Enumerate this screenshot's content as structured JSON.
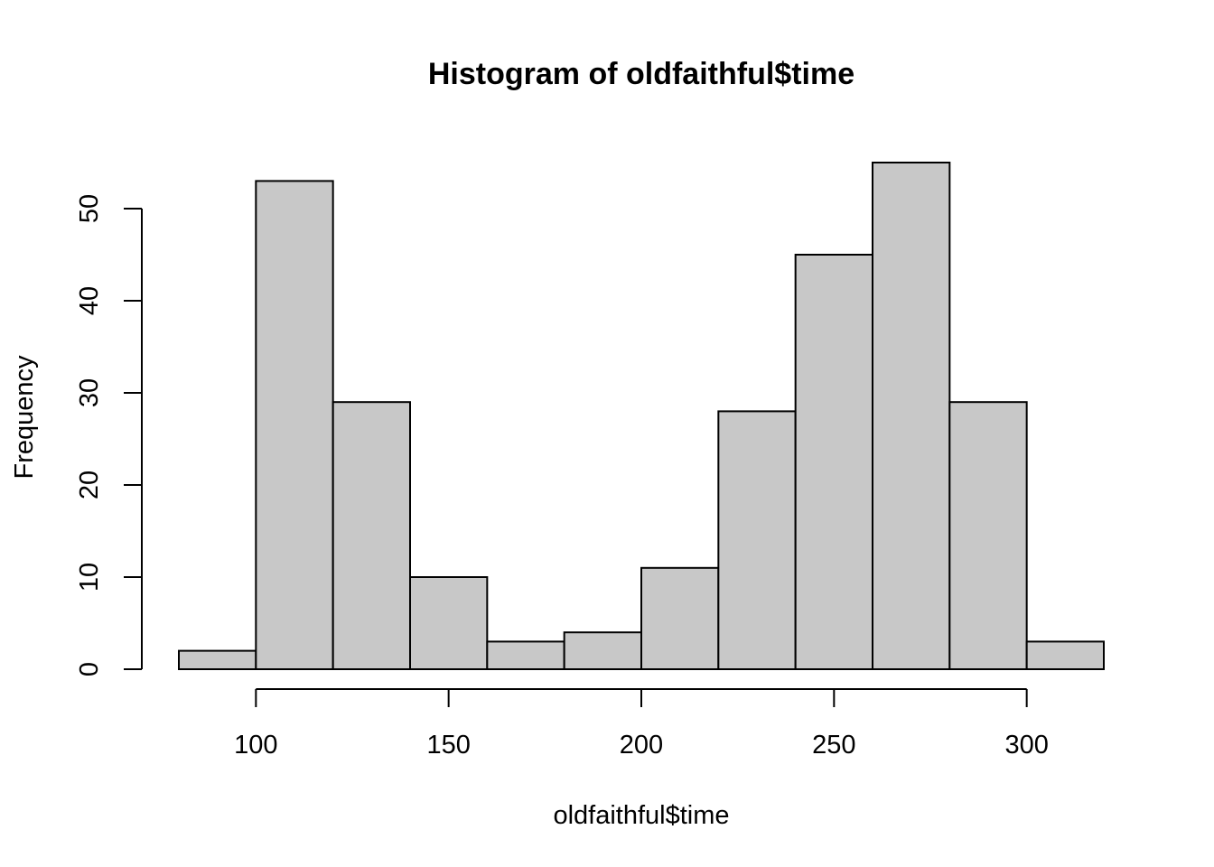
{
  "chart_data": {
    "type": "bar",
    "title": "Histogram of oldfaithful$time",
    "xlabel": "oldfaithful$time",
    "ylabel": "Frequency",
    "bin_edges": [
      80,
      100,
      120,
      140,
      160,
      180,
      200,
      220,
      240,
      260,
      280,
      300,
      320
    ],
    "values": [
      2,
      53,
      29,
      10,
      3,
      4,
      11,
      28,
      45,
      55,
      29,
      3
    ],
    "x_ticks": [
      100,
      150,
      200,
      250,
      300
    ],
    "y_ticks": [
      0,
      10,
      20,
      30,
      40,
      50
    ],
    "xlim": [
      80,
      320
    ],
    "ylim": [
      0,
      55
    ],
    "grid": false,
    "colors": {
      "bar_fill": "#c8c8c8",
      "bar_stroke": "#000000"
    }
  }
}
